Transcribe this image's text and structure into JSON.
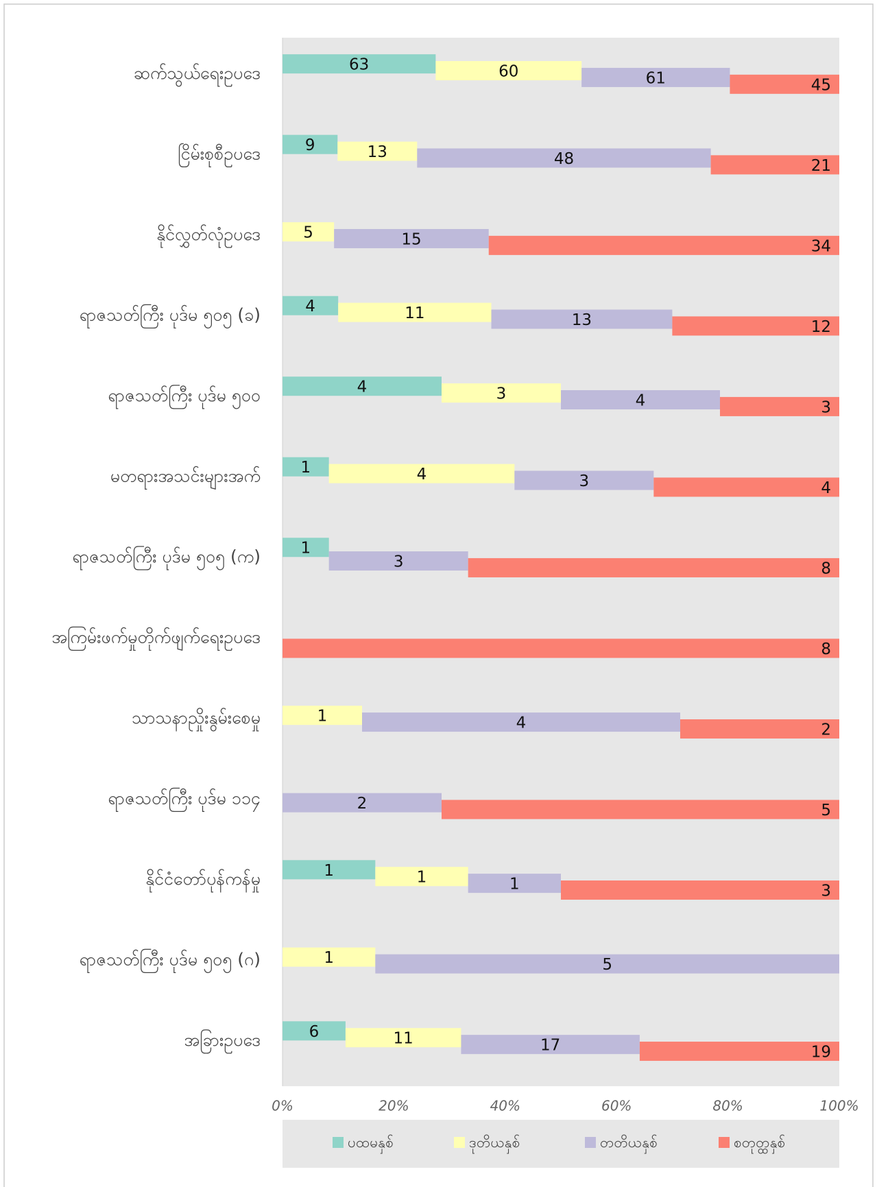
{
  "chart_data": {
    "type": "bar_stacked_percent",
    "orientation": "horizontal",
    "categories": [
      "ဆက်သွယ်ရေးဥပဒေ",
      "ငြိမ်းစုစီဥပဒေ",
      "နိုင်လွှတ်လုံဥပဒေ",
      "ရာဇသတ်ကြီး ပုဒ်မ ၅၀၅ (ခ)",
      "ရာဇသတ်ကြီး ပုဒ်မ ၅၀၀",
      "မတရားအသင်းများအက်",
      "ရာဇသတ်ကြီး ပုဒ်မ ၅၀၅ (က)",
      "အကြမ်းဖက်မှုတိုက်ဖျက်ရေးဥပဒေ",
      "သာသနာညှိုးနွမ်းစေမှု",
      "ရာဇသတ်ကြီး ပုဒ်မ ၁၁၄",
      "နိုင်ငံတော်ပုန်ကန်မှု",
      "ရာဇသတ်ကြီး ပုဒ်မ ၅၀၅ (ဂ)",
      "အခြားဥပဒေ"
    ],
    "series": [
      {
        "name": "ပထမနှစ်",
        "color": "#8fd4c8",
        "values": [
          63,
          9,
          null,
          4,
          4,
          1,
          1,
          null,
          null,
          null,
          1,
          null,
          6
        ]
      },
      {
        "name": "ဒုတိယနှစ်",
        "color": "#ffffb3",
        "values": [
          60,
          13,
          5,
          11,
          3,
          4,
          null,
          null,
          1,
          null,
          1,
          1,
          11
        ]
      },
      {
        "name": "တတိယနှစ်",
        "color": "#bebada",
        "values": [
          61,
          48,
          15,
          13,
          4,
          3,
          3,
          null,
          4,
          2,
          1,
          5,
          17
        ]
      },
      {
        "name": "စတုတ္ထနှစ်",
        "color": "#fb8072",
        "values": [
          45,
          21,
          34,
          12,
          3,
          4,
          8,
          8,
          2,
          5,
          3,
          null,
          19
        ]
      }
    ],
    "xlim": [
      0,
      100
    ],
    "xticks": [
      {
        "value": 0,
        "label": "0%"
      },
      {
        "value": 20,
        "label": "20%"
      },
      {
        "value": 40,
        "label": "40%"
      },
      {
        "value": 60,
        "label": "60%"
      },
      {
        "value": 80,
        "label": "80%"
      },
      {
        "value": 100,
        "label": "100%"
      }
    ],
    "legend": "bottom"
  }
}
